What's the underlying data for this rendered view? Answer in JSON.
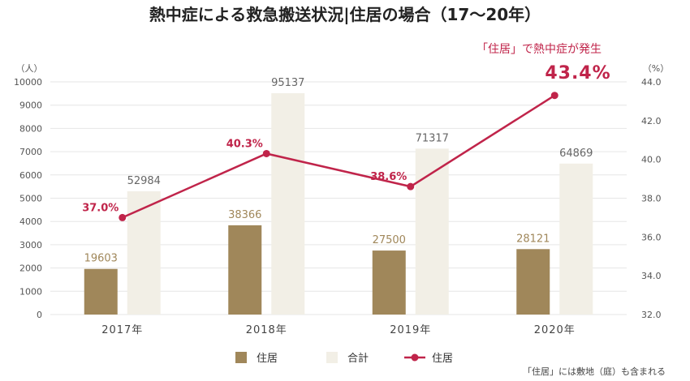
{
  "colors": {
    "residence_bar": "#a0875a",
    "total_bar": "#f2efe6",
    "line": "#c0244a",
    "grid": "#e6e6e6",
    "text": "#333333"
  },
  "chart_data": {
    "type": "bar",
    "title": "熱中症による救急搬送状況|住居の場合（17〜20年）",
    "categories": [
      "2017年",
      "2018年",
      "2019年",
      "2020年"
    ],
    "y_left": {
      "unit": "（人）",
      "ylim": [
        0,
        10000
      ],
      "ticks": [
        "0",
        "1000",
        "2000",
        "3000",
        "4000",
        "5000",
        "6000",
        "7000",
        "8000",
        "9000",
        "10000"
      ]
    },
    "y_right": {
      "unit": "（%）",
      "ylim": [
        32.0,
        44.0
      ],
      "ticks": [
        "32.0",
        "34.0",
        "36.0",
        "38.0",
        "40.0",
        "42.0",
        "44.0"
      ]
    },
    "series": [
      {
        "name": "住居",
        "type": "bar",
        "axis": "left",
        "values": [
          1960.3,
          3836.6,
          2750.0,
          2812.1
        ],
        "labels": [
          "19603",
          "38366",
          "27500",
          "28121"
        ]
      },
      {
        "name": "合計",
        "type": "bar",
        "axis": "left",
        "values": [
          5298.4,
          9513.7,
          7131.7,
          6486.9
        ],
        "labels": [
          "52984",
          "95137",
          "71317",
          "64869"
        ]
      },
      {
        "name": "住居",
        "type": "line",
        "axis": "right",
        "values": [
          37.0,
          40.3,
          38.6,
          43.3
        ],
        "labels": [
          "37.0%",
          "40.3%",
          "38.6%",
          ""
        ]
      }
    ],
    "highlight": {
      "text": "「住居」で熱中症が発生",
      "value": "43.4%"
    },
    "legend": {
      "position": "bottom",
      "items": [
        "住居",
        "合計",
        "住居"
      ]
    },
    "grid": true,
    "note": "「住居」には敷地（庭）も含まれる"
  }
}
